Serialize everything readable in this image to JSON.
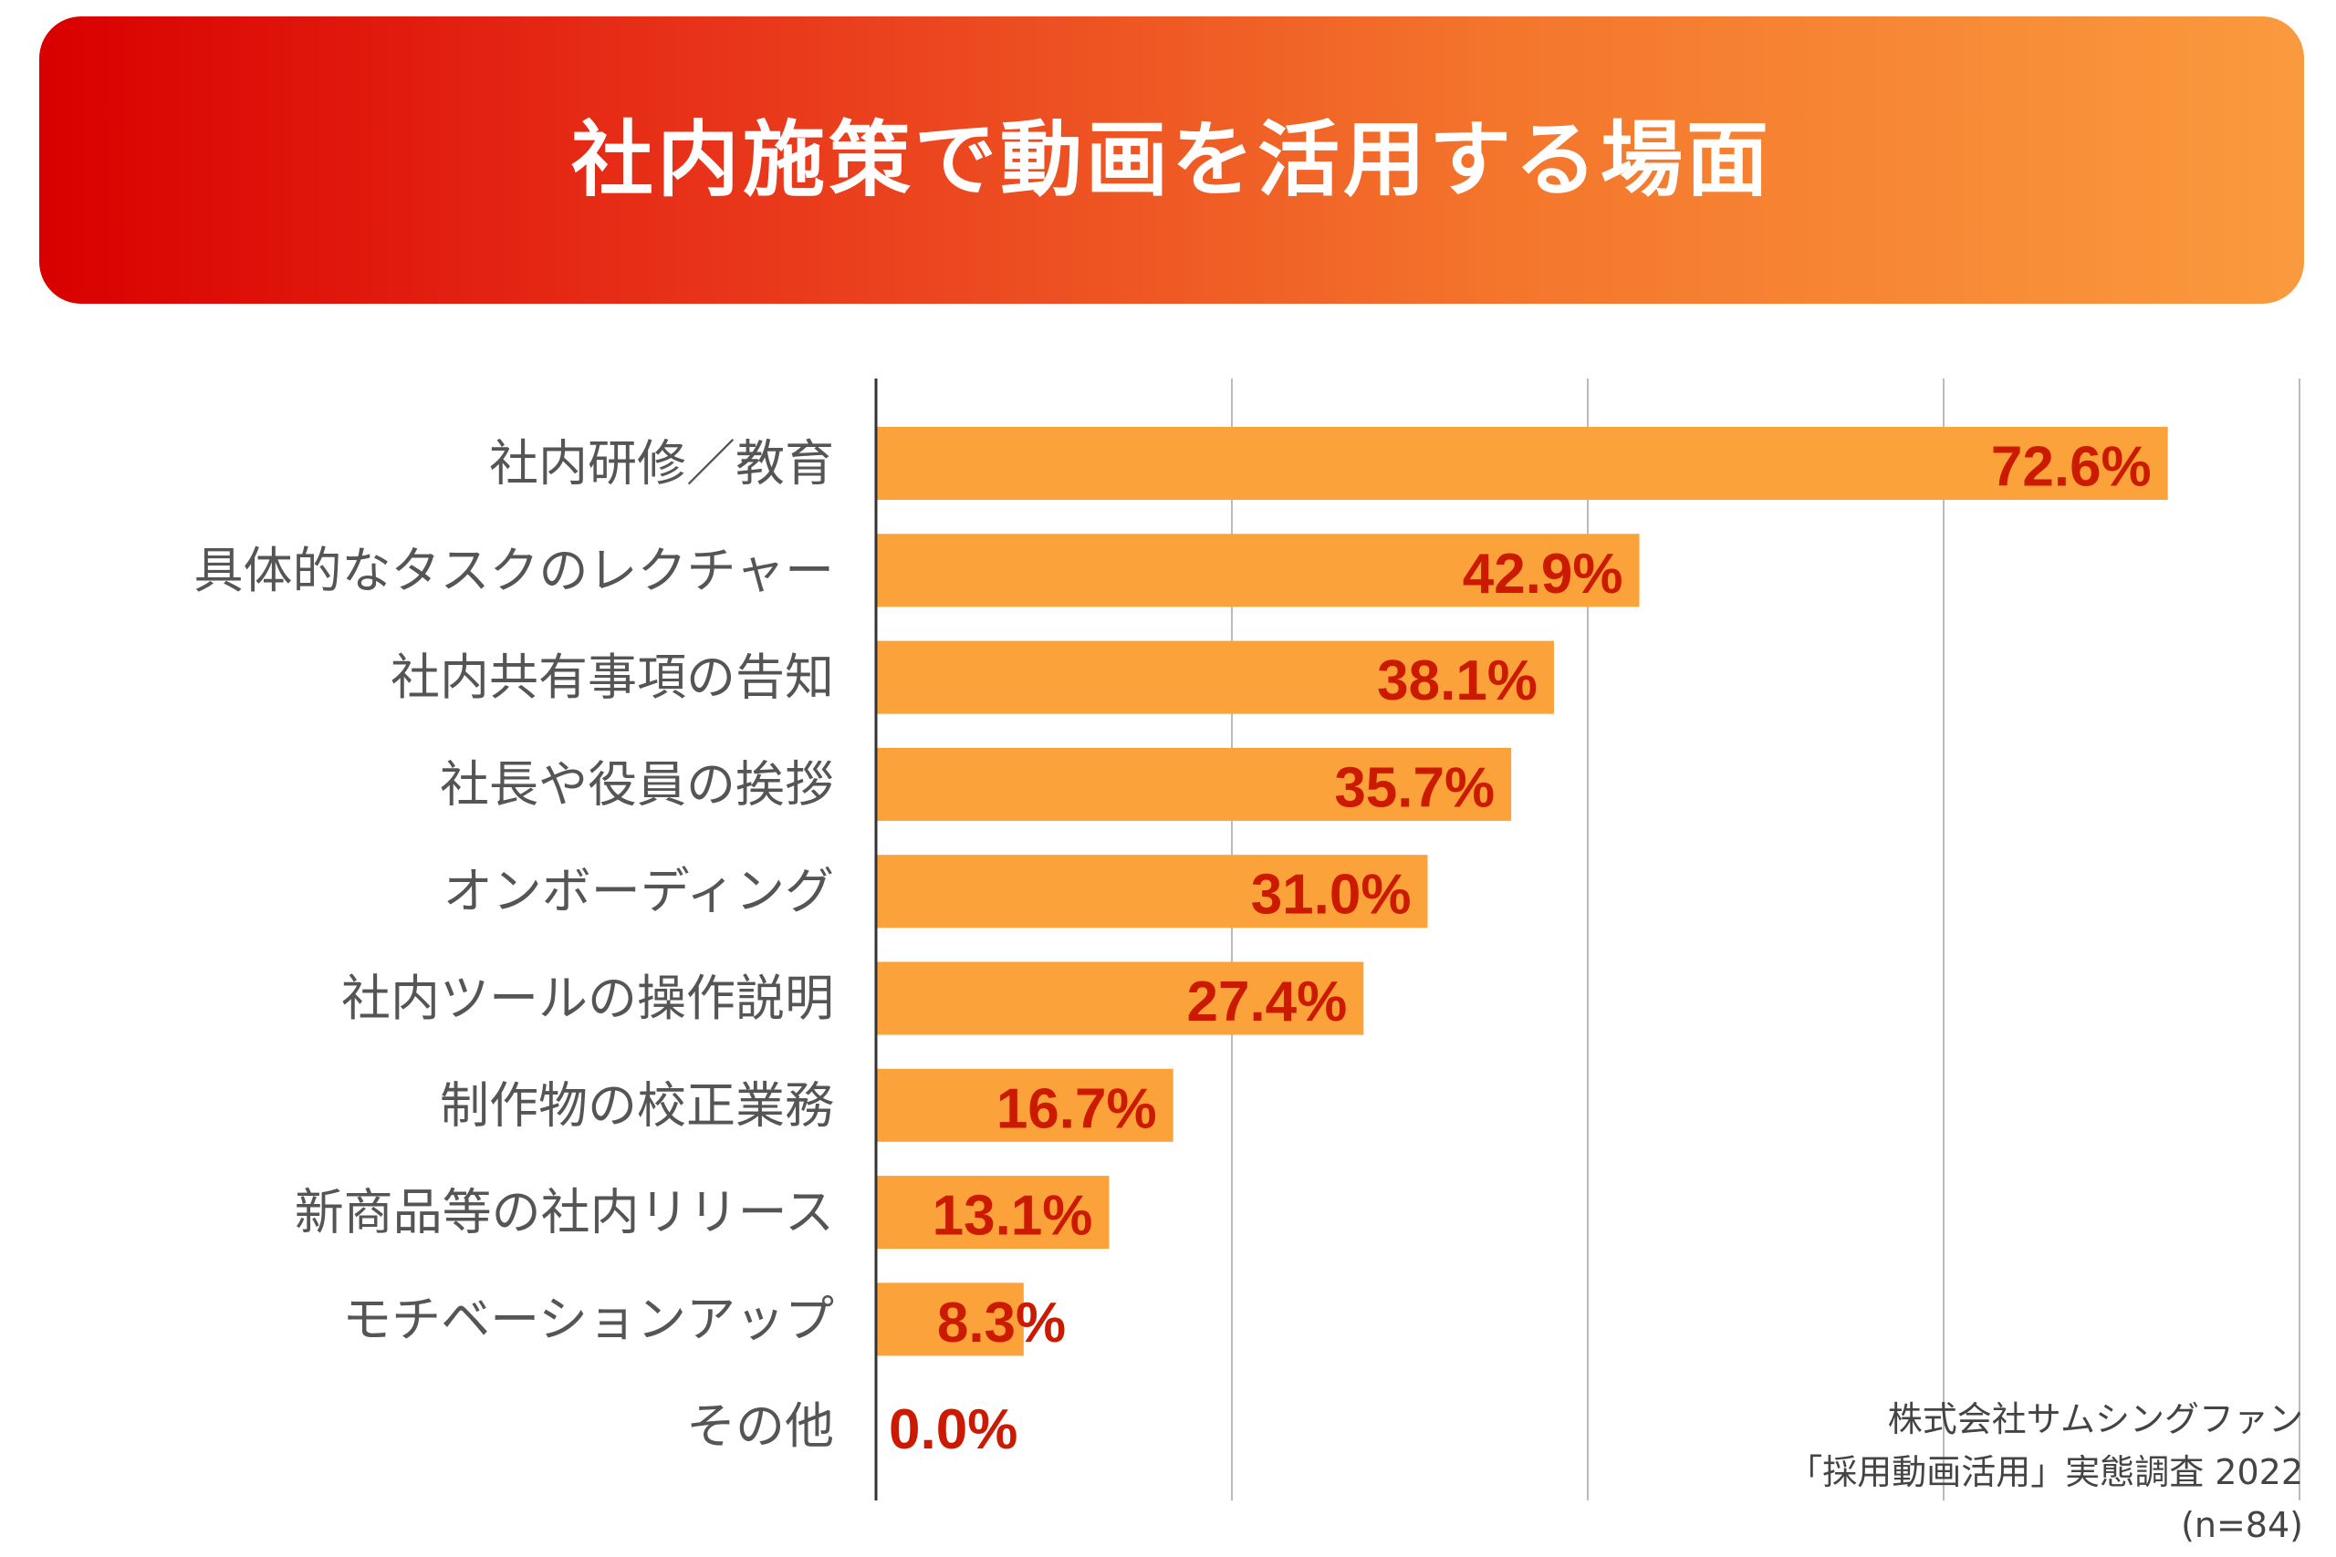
{
  "header": {
    "title": "社内施策で動画を活用する場面"
  },
  "chart_data": {
    "type": "bar",
    "orientation": "horizontal",
    "title": "社内施策で動画を活用する場面",
    "categories": [
      "社内研修／教育",
      "具体的なタスクのレクチャー",
      "社内共有事項の告知",
      "社長や役員の挨拶",
      "オンボーディング",
      "社内ツールの操作説明",
      "制作物の校正業務",
      "新商品等の社内リリース",
      "モチベーションアップ",
      "その他"
    ],
    "values": [
      72.6,
      42.9,
      38.1,
      35.7,
      31.0,
      27.4,
      16.7,
      13.1,
      8.3,
      0.0
    ],
    "value_labels": [
      "72.6%",
      "42.9%",
      "38.1%",
      "35.7%",
      "31.0%",
      "27.4%",
      "16.7%",
      "13.1%",
      "8.3%",
      "0.0%"
    ],
    "xlim": [
      0,
      80
    ],
    "grid": true,
    "colors": {
      "bar": "#fba23a",
      "value_label": "#cc1a00",
      "category_label": "#555555",
      "gridline": "#bbbbbb",
      "axis": "#333333"
    }
  },
  "source": {
    "line1": "株式会社サムシングファン",
    "line2": "「採用動画活用」実態調査 2022",
    "line3": "(n=84)"
  }
}
